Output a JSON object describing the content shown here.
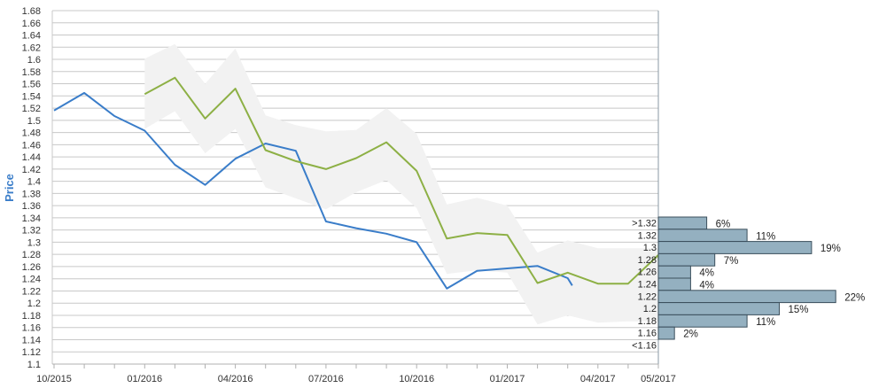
{
  "chart_data": {
    "type": "line",
    "ylabel": "Price",
    "ylim": [
      1.1,
      1.68
    ],
    "y_ticks": [
      "1.1",
      "1.12",
      "1.14",
      "1.16",
      "1.18",
      "1.2",
      "1.22",
      "1.24",
      "1.26",
      "1.28",
      "1.3",
      "1.32",
      "1.34",
      "1.36",
      "1.38",
      "1.4",
      "1.42",
      "1.44",
      "1.46",
      "1.48",
      "1.5",
      "1.52",
      "1.54",
      "1.56",
      "1.58",
      "1.6",
      "1.62",
      "1.64",
      "1.66",
      "1.68"
    ],
    "x_ticks": [
      {
        "label": "10/2015",
        "month": 0
      },
      {
        "label": "01/2016",
        "month": 3
      },
      {
        "label": "04/2016",
        "month": 6
      },
      {
        "label": "07/2016",
        "month": 9
      },
      {
        "label": "10/2016",
        "month": 12
      },
      {
        "label": "01/2017",
        "month": 15
      },
      {
        "label": "04/2017",
        "month": 18
      },
      {
        "label": "05/2017",
        "month": 20
      }
    ],
    "grid": true,
    "series": [
      {
        "color": "#3a7dc9",
        "points": [
          [
            0,
            1.516
          ],
          [
            1,
            1.545
          ],
          [
            2,
            1.507
          ],
          [
            3,
            1.483
          ],
          [
            4,
            1.427
          ],
          [
            5,
            1.394
          ],
          [
            6,
            1.437
          ],
          [
            7,
            1.462
          ],
          [
            8,
            1.45
          ],
          [
            9,
            1.334
          ],
          [
            10,
            1.323
          ],
          [
            11,
            1.314
          ],
          [
            12,
            1.3
          ],
          [
            13,
            1.224
          ],
          [
            14,
            1.253
          ],
          [
            15,
            1.257
          ],
          [
            16,
            1.261
          ],
          [
            17,
            1.241
          ],
          [
            17.15,
            1.229
          ]
        ]
      },
      {
        "color": "#8db045",
        "points": [
          [
            3,
            1.543
          ],
          [
            4,
            1.57
          ],
          [
            5,
            1.503
          ],
          [
            6,
            1.552
          ],
          [
            7,
            1.451
          ],
          [
            8,
            1.433
          ],
          [
            9,
            1.42
          ],
          [
            10,
            1.438
          ],
          [
            11,
            1.464
          ],
          [
            12,
            1.417
          ],
          [
            13,
            1.306
          ],
          [
            14,
            1.315
          ],
          [
            15,
            1.312
          ],
          [
            16,
            1.233
          ],
          [
            17,
            1.25
          ],
          [
            18,
            1.232
          ],
          [
            19,
            1.232
          ],
          [
            20,
            1.279
          ],
          [
            20.05,
            1.244
          ]
        ]
      }
    ],
    "band": {
      "color": "#f2f2f2",
      "upper": [
        [
          3,
          1.601
        ],
        [
          4,
          1.625
        ],
        [
          5,
          1.56
        ],
        [
          6,
          1.618
        ],
        [
          7,
          1.508
        ],
        [
          8,
          1.492
        ],
        [
          9,
          1.482
        ],
        [
          10,
          1.484
        ],
        [
          11,
          1.52
        ],
        [
          12,
          1.478
        ],
        [
          13,
          1.362
        ],
        [
          14,
          1.373
        ],
        [
          15,
          1.36
        ],
        [
          16,
          1.283
        ],
        [
          17,
          1.303
        ],
        [
          18,
          1.29
        ],
        [
          19,
          1.29
        ],
        [
          20,
          1.29
        ]
      ],
      "lower": [
        [
          3,
          1.486
        ],
        [
          4,
          1.515
        ],
        [
          5,
          1.446
        ],
        [
          6,
          1.486
        ],
        [
          7,
          1.39
        ],
        [
          8,
          1.372
        ],
        [
          9,
          1.354
        ],
        [
          10,
          1.382
        ],
        [
          11,
          1.402
        ],
        [
          12,
          1.356
        ],
        [
          13,
          1.248
        ],
        [
          14,
          1.254
        ],
        [
          15,
          1.25
        ],
        [
          16,
          1.165
        ],
        [
          17,
          1.18
        ],
        [
          18,
          1.168
        ],
        [
          19,
          1.17
        ],
        [
          20,
          1.17
        ]
      ]
    },
    "histogram": {
      "color": "#94b0c0",
      "stroke": "#3b4f5c",
      "bins": [
        {
          "label": ">1.32",
          "value": 6,
          "pct": "6%"
        },
        {
          "label": "1.32",
          "value": 11,
          "pct": "11%"
        },
        {
          "label": "1.3",
          "value": 19,
          "pct": "19%"
        },
        {
          "label": "1.28",
          "value": 7,
          "pct": "7%"
        },
        {
          "label": "1.26",
          "value": 4,
          "pct": "4%"
        },
        {
          "label": "1.24",
          "value": 4,
          "pct": "4%"
        },
        {
          "label": "1.22",
          "value": 22,
          "pct": "22%"
        },
        {
          "label": "1.2",
          "value": 15,
          "pct": "15%"
        },
        {
          "label": "1.18",
          "value": 11,
          "pct": "11%"
        },
        {
          "label": "1.16",
          "value": 2,
          "pct": "2%"
        },
        {
          "label": "<1.16",
          "value": 0,
          "pct": ""
        }
      ]
    }
  }
}
